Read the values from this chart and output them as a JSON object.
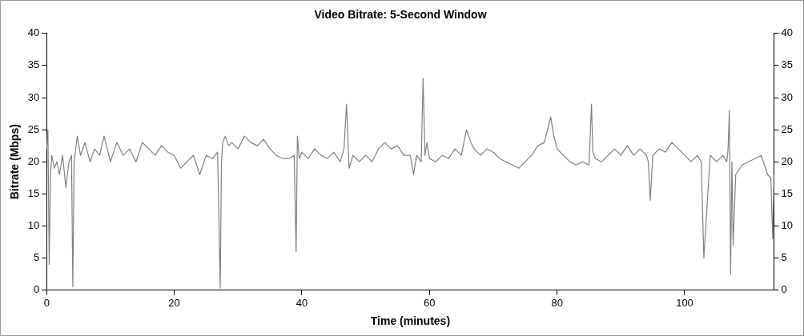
{
  "chart_data": {
    "type": "line",
    "title": "Video Bitrate: 5-Second Window",
    "xlabel": "Time (minutes)",
    "ylabel": "Bitrate (Mbps)",
    "xlim": [
      0,
      114
    ],
    "xticks": [
      0,
      20,
      40,
      60,
      80,
      100
    ],
    "ylim": [
      0,
      40
    ],
    "yticks": [
      0,
      5,
      10,
      15,
      20,
      25,
      30,
      35,
      40
    ],
    "y2lim": [
      0,
      40
    ],
    "y2ticks": [
      0,
      5,
      10,
      15,
      20,
      25,
      30,
      35,
      40
    ],
    "grid": false,
    "legend": false,
    "marker": "none",
    "line_style": "solid",
    "series": [
      {
        "color": "#808080",
        "x": [
          0,
          0.2,
          0.4,
          0.6,
          0.8,
          1.2,
          1.6,
          2,
          2.5,
          3,
          3.5,
          3.9,
          4.1,
          4.3,
          4.8,
          5.3,
          6,
          6.8,
          7.5,
          8.3,
          9,
          10,
          11,
          12,
          13,
          14,
          15,
          16,
          17,
          18,
          19,
          20,
          21,
          22,
          23,
          24,
          25,
          26,
          26.8,
          27.2,
          27.4,
          27.6,
          28,
          28.5,
          29,
          30,
          31,
          32,
          33,
          34,
          35,
          36,
          37,
          38,
          38.8,
          39.1,
          39.3,
          39.6,
          40,
          41,
          42,
          43,
          44,
          45,
          46,
          46.6,
          47,
          47.4,
          48,
          49,
          50,
          51,
          52,
          53,
          54,
          55,
          56,
          57,
          57.5,
          58,
          58.7,
          59,
          59.3,
          59.6,
          60,
          61,
          62,
          63,
          64,
          65,
          65.8,
          66.5,
          67,
          68,
          69,
          70,
          71,
          72,
          73,
          74,
          75,
          76,
          77,
          78,
          79,
          79.5,
          80,
          81,
          82,
          83,
          84,
          85,
          85.4,
          85.6,
          86,
          87,
          88,
          89,
          90,
          91,
          92,
          93,
          94,
          94.3,
          94.6,
          95,
          96,
          97,
          98,
          99,
          100,
          101,
          102,
          102.6,
          103,
          104,
          105,
          106,
          106.6,
          106.8,
          107,
          107.2,
          107.4,
          107.6,
          108,
          109,
          110,
          111,
          112,
          113,
          113.5,
          113.8,
          114
        ],
        "values": [
          22,
          25,
          4,
          18,
          21,
          19,
          20,
          18,
          21,
          16,
          20,
          21,
          0.5,
          20,
          24,
          21,
          23,
          20,
          22,
          21,
          24,
          20,
          23,
          21,
          22,
          20,
          23,
          22,
          21,
          22.5,
          21.5,
          21,
          19,
          20,
          21,
          18,
          21,
          20.5,
          21.5,
          0.3,
          20,
          23,
          24,
          22.5,
          23,
          22,
          24,
          23,
          22.5,
          23.5,
          22,
          21,
          20.5,
          20.5,
          21,
          6,
          24,
          20.5,
          21.5,
          20.5,
          22,
          21,
          20.5,
          21.5,
          20,
          22,
          29,
          19,
          21,
          20,
          21,
          20,
          22,
          23,
          22,
          22.5,
          21,
          21,
          18,
          21,
          20,
          33,
          21,
          23,
          20.5,
          20,
          21,
          20.5,
          22,
          21,
          25,
          23,
          22,
          21,
          22,
          21.5,
          20.5,
          20,
          19.5,
          19,
          20,
          21,
          22.5,
          23,
          27,
          24,
          22,
          21,
          20,
          19.5,
          20,
          19.5,
          29,
          21.5,
          20.5,
          20,
          21,
          22,
          21,
          22.5,
          21,
          22,
          21,
          20,
          14,
          21,
          22,
          21.5,
          23,
          22,
          21,
          20,
          21,
          20,
          5,
          21,
          20,
          21,
          20,
          22,
          28,
          2.5,
          20,
          7,
          18,
          19.5,
          20,
          20.5,
          21,
          18,
          17.5,
          8,
          18
        ]
      }
    ]
  }
}
